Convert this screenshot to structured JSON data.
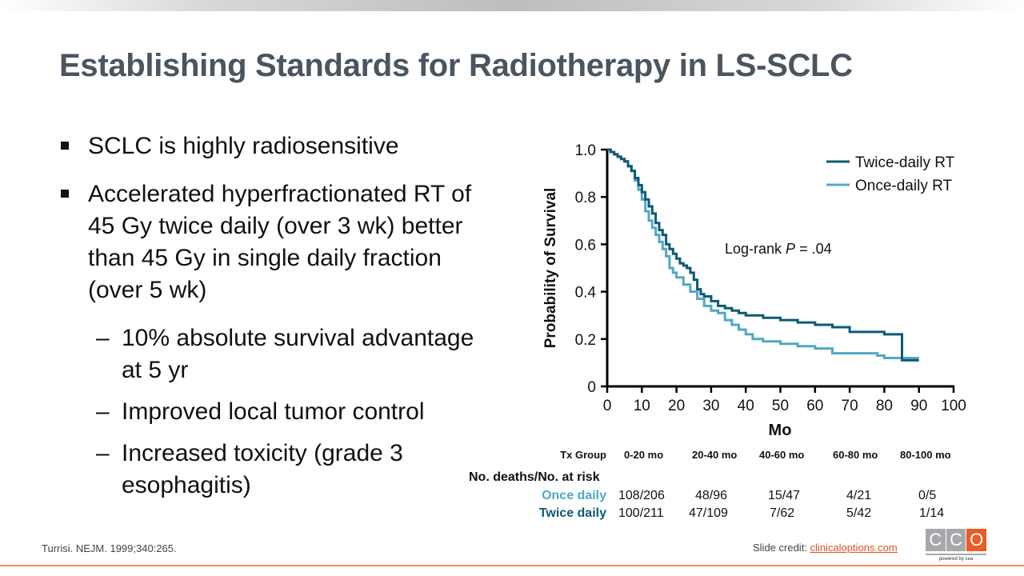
{
  "slide": {
    "title": "Establishing Standards for Radiotherapy in LS-SCLC",
    "bullets": [
      {
        "level": 1,
        "text": "SCLC is highly radiosensitive"
      },
      {
        "level": 1,
        "text": "Accelerated hyperfractionated RT of 45 Gy twice daily (over 3 wk) better than 45 Gy in single daily fraction (over 5 wk)"
      },
      {
        "level": 2,
        "text": "10% absolute survival advantage at 5 yr"
      },
      {
        "level": 2,
        "text": "Improved local tumor control"
      },
      {
        "level": 2,
        "text": "Increased toxicity (grade 3 esophagitis)"
      }
    ],
    "bullet_marker": "■",
    "sub_marker": "–"
  },
  "footer": {
    "citation": "Turrisi. NEJM. 1999;340:265.",
    "credit_label": "Slide credit: ",
    "credit_link": "clinicaloptions.com",
    "logo_letters": [
      "C",
      "C",
      "O"
    ],
    "logo_tagline": "powered by cea"
  },
  "chart_data": {
    "type": "line",
    "subtype": "kaplan-meier step",
    "title": "",
    "xlabel": "Mo",
    "ylabel": "Probability of Survival",
    "xlim": [
      0,
      100
    ],
    "ylim": [
      0,
      1.0
    ],
    "xticks": [
      0,
      10,
      20,
      30,
      40,
      50,
      60,
      70,
      80,
      90,
      100
    ],
    "yticks": [
      0,
      0.2,
      0.4,
      0.6,
      0.8,
      1.0
    ],
    "ytick_labels": [
      "0",
      "0.2",
      "0.4",
      "0.6",
      "0.8",
      "1.0"
    ],
    "grid": false,
    "legend_position": "top-right",
    "annotation": {
      "prefix": "Log-rank ",
      "italic": "P",
      "suffix": " = .04"
    },
    "series": [
      {
        "name": "Twice-daily RT",
        "color": "#0f5a73",
        "x": [
          0,
          1,
          2,
          3,
          4,
          5,
          6,
          7,
          8,
          9,
          10,
          11,
          12,
          13,
          14,
          15,
          16,
          17,
          18,
          19,
          20,
          21,
          22,
          23,
          24,
          25,
          26,
          27,
          28,
          30,
          32,
          34,
          36,
          38,
          40,
          45,
          50,
          55,
          60,
          65,
          70,
          75,
          80,
          85,
          85.1,
          90
        ],
        "y": [
          1.0,
          0.99,
          0.98,
          0.97,
          0.96,
          0.95,
          0.93,
          0.91,
          0.88,
          0.85,
          0.82,
          0.79,
          0.76,
          0.73,
          0.69,
          0.66,
          0.64,
          0.6,
          0.58,
          0.56,
          0.54,
          0.52,
          0.51,
          0.5,
          0.48,
          0.45,
          0.41,
          0.39,
          0.38,
          0.36,
          0.34,
          0.33,
          0.32,
          0.31,
          0.3,
          0.29,
          0.28,
          0.27,
          0.26,
          0.25,
          0.23,
          0.23,
          0.22,
          0.22,
          0.11,
          0.11
        ]
      },
      {
        "name": "Once-daily RT",
        "color": "#4fa9c4",
        "x": [
          0,
          1,
          2,
          3,
          4,
          5,
          6,
          7,
          8,
          9,
          10,
          11,
          12,
          13,
          14,
          15,
          16,
          17,
          18,
          19,
          20,
          22,
          24,
          26,
          28,
          30,
          32,
          34,
          36,
          38,
          40,
          42,
          45,
          50,
          55,
          60,
          65,
          70,
          75,
          78,
          80,
          85,
          90
        ],
        "y": [
          1.0,
          0.99,
          0.98,
          0.97,
          0.96,
          0.95,
          0.93,
          0.91,
          0.87,
          0.83,
          0.79,
          0.74,
          0.7,
          0.67,
          0.64,
          0.61,
          0.58,
          0.55,
          0.5,
          0.48,
          0.46,
          0.43,
          0.4,
          0.37,
          0.34,
          0.32,
          0.31,
          0.28,
          0.26,
          0.24,
          0.22,
          0.2,
          0.19,
          0.18,
          0.17,
          0.16,
          0.14,
          0.14,
          0.14,
          0.13,
          0.12,
          0.12,
          0.12
        ]
      }
    ],
    "risk_table": {
      "header_label": "Tx Group",
      "columns": [
        "0-20 mo",
        "20-40 mo",
        "40-60 mo",
        "60-80 mo",
        "80-100 mo"
      ],
      "subheader": "No. deaths/No. at risk",
      "rows": [
        {
          "group": "Once daily",
          "color": "#4fa9c4",
          "values": [
            "108/206",
            "48/96",
            "15/47",
            "4/21",
            "0/5"
          ]
        },
        {
          "group": "Twice daily",
          "color": "#0f5a73",
          "values": [
            "100/211",
            "47/109",
            "7/62",
            "5/42",
            "1/14"
          ]
        }
      ]
    }
  }
}
